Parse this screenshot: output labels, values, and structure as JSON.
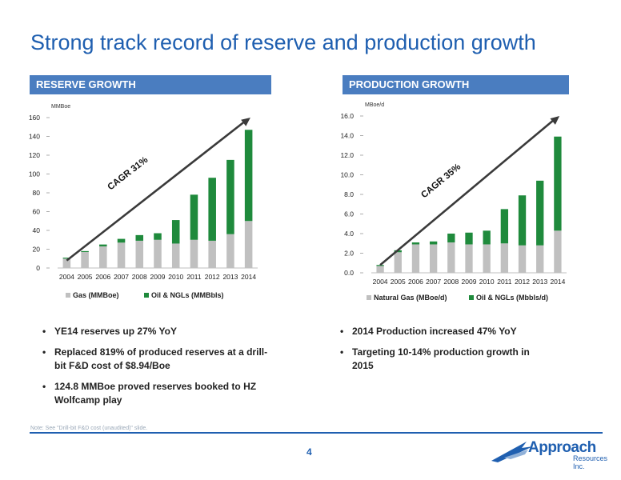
{
  "title": "Strong track record of reserve and production  growth",
  "left_section": "RESERVE GROWTH",
  "right_section": "PRODUCTION GROWTH",
  "chart_data": [
    {
      "type": "bar",
      "stacked": true,
      "ylabel": "MMBoe",
      "categories": [
        "2004",
        "2005",
        "2006",
        "2007",
        "2008",
        "2009",
        "2010",
        "2011",
        "2012",
        "2013",
        "2014"
      ],
      "yticks": [
        "0",
        "20",
        "40",
        "60",
        "80",
        "100",
        "120",
        "140",
        "160"
      ],
      "ylim": [
        0,
        160
      ],
      "series": [
        {
          "name": "Gas (MMBoe)",
          "color": "#c0c0c0",
          "values": [
            10,
            17,
            23,
            27,
            29,
            30,
            26,
            30,
            29,
            36,
            50
          ]
        },
        {
          "name": "Oil & NGLs (MMBbls)",
          "color": "#1f8a3c",
          "values": [
            1,
            1,
            2,
            4,
            6,
            7,
            25,
            48,
            67,
            79,
            97
          ]
        }
      ],
      "annotation": "CAGR 31%",
      "legend": "bottom"
    },
    {
      "type": "bar",
      "stacked": true,
      "ylabel": "MBoe/d",
      "categories": [
        "2004",
        "2005",
        "2006",
        "2007",
        "2008",
        "2009",
        "2010",
        "2011",
        "2012",
        "2013",
        "2014"
      ],
      "yticks": [
        "0.0",
        "2.0",
        "4.0",
        "6.0",
        "8.0",
        "10.0",
        "12.0",
        "14.0",
        "16.0"
      ],
      "ylim": [
        0,
        16
      ],
      "series": [
        {
          "name": "Natural Gas (MBoe/d)",
          "color": "#c0c0c0",
          "values": [
            0.7,
            2.1,
            2.9,
            2.9,
            3.1,
            2.9,
            2.9,
            3.0,
            2.8,
            2.8,
            4.3
          ]
        },
        {
          "name": "Oil & NGLs (Mbbls/d)",
          "color": "#1f8a3c",
          "values": [
            0.1,
            0.2,
            0.2,
            0.3,
            0.9,
            1.2,
            1.4,
            3.5,
            5.1,
            6.6,
            9.6
          ]
        }
      ],
      "annotation": "CAGR 35%",
      "legend": "bottom"
    }
  ],
  "left_bullets": [
    "YE14 reserves up 27% YoY",
    "Replaced 819%  of produced reserves at a drill-bit F&D cost of $8.94/Boe",
    "124.8 MMBoe proved reserves booked to HZ Wolfcamp play"
  ],
  "right_bullets": [
    "2014 Production increased 47% YoY",
    "Targeting 10-14% production growth in 2015"
  ],
  "note": "Note: See \"Drill-bit F&D cost (unaudited)\" slide.",
  "page_number": "4",
  "logo": {
    "name": "Approach",
    "sub": "Resources Inc."
  }
}
